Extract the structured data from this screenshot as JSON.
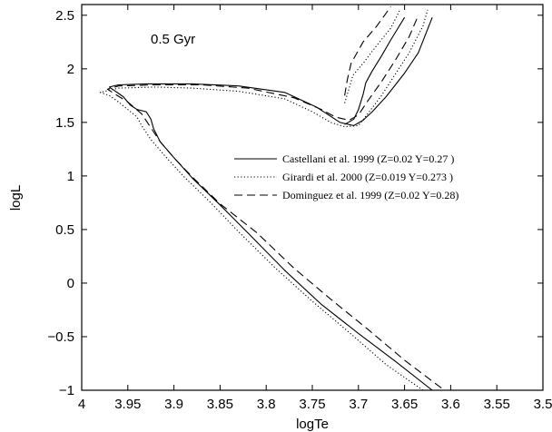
{
  "chart_data": {
    "type": "line",
    "title": "",
    "annotation": "0.5 Gyr",
    "xlabel": "logTe",
    "ylabel": "logL",
    "xlim": [
      4,
      3.5
    ],
    "ylim": [
      -1,
      2.6
    ],
    "x_inverted": true,
    "grid": false,
    "legend_position": "center-right",
    "x_ticks": [
      4,
      3.95,
      3.9,
      3.85,
      3.8,
      3.75,
      3.7,
      3.65,
      3.6,
      3.55,
      3.5
    ],
    "x_tick_labels": [
      "4",
      "3.95",
      "3.9",
      "3.85",
      "3.8",
      "3.75",
      "3.7",
      "3.65",
      "3.6",
      "3.55",
      "3.5"
    ],
    "y_ticks": [
      -1,
      -0.5,
      0,
      0.5,
      1,
      1.5,
      2,
      2.5
    ],
    "y_tick_labels": [
      "−1",
      "−0.5",
      "0",
      "0.5",
      "1",
      "1.5",
      "2",
      "2.5"
    ],
    "series": [
      {
        "name": "Castellani et al. 1999 (Z=0.02 Y=0.27 )",
        "line_style": "solid",
        "color": "#000000",
        "segments": [
          [
            [
              3.62,
              -1.0
            ],
            [
              3.66,
              -0.73
            ],
            [
              3.7,
              -0.47
            ],
            [
              3.74,
              -0.2
            ],
            [
              3.78,
              0.12
            ],
            [
              3.82,
              0.47
            ],
            [
              3.85,
              0.73
            ],
            [
              3.88,
              0.98
            ],
            [
              3.9,
              1.17
            ],
            [
              3.915,
              1.32
            ],
            [
              3.922,
              1.44
            ],
            [
              3.925,
              1.53
            ],
            [
              3.93,
              1.6
            ],
            [
              3.94,
              1.62
            ],
            [
              3.947,
              1.66
            ],
            [
              3.955,
              1.74
            ],
            [
              3.97,
              1.83
            ],
            [
              3.96,
              1.85
            ],
            [
              3.93,
              1.86
            ],
            [
              3.88,
              1.86
            ],
            [
              3.83,
              1.84
            ],
            [
              3.78,
              1.78
            ],
            [
              3.745,
              1.64
            ],
            [
              3.72,
              1.5
            ],
            [
              3.705,
              1.47
            ],
            [
              3.695,
              1.52
            ],
            [
              3.685,
              1.6
            ],
            [
              3.67,
              1.74
            ],
            [
              3.65,
              1.96
            ],
            [
              3.635,
              2.15
            ],
            [
              3.62,
              2.48
            ]
          ],
          [
            [
              3.715,
              1.48
            ],
            [
              3.705,
              1.53
            ],
            [
              3.7,
              1.62
            ],
            [
              3.695,
              1.76
            ],
            [
              3.692,
              1.87
            ],
            [
              3.685,
              1.98
            ],
            [
              3.675,
              2.12
            ],
            [
              3.665,
              2.27
            ],
            [
              3.65,
              2.48
            ]
          ]
        ]
      },
      {
        "name": "Girardi et al. 2000 (Z=0.019 Y=0.273 )",
        "line_style": "dotted",
        "color": "#000000",
        "segments": [
          [
            [
              3.63,
              -1.0
            ],
            [
              3.67,
              -0.76
            ],
            [
              3.71,
              -0.46
            ],
            [
              3.75,
              -0.17
            ],
            [
              3.79,
              0.14
            ],
            [
              3.83,
              0.48
            ],
            [
              3.86,
              0.75
            ],
            [
              3.89,
              1.0
            ],
            [
              3.91,
              1.19
            ],
            [
              3.925,
              1.34
            ],
            [
              3.935,
              1.47
            ],
            [
              3.94,
              1.55
            ],
            [
              3.95,
              1.62
            ],
            [
              3.96,
              1.69
            ],
            [
              3.97,
              1.75
            ],
            [
              3.98,
              1.78
            ],
            [
              3.96,
              1.82
            ],
            [
              3.92,
              1.83
            ],
            [
              3.88,
              1.82
            ],
            [
              3.83,
              1.79
            ],
            [
              3.78,
              1.72
            ],
            [
              3.75,
              1.6
            ],
            [
              3.73,
              1.5
            ],
            [
              3.715,
              1.46
            ],
            [
              3.7,
              1.47
            ],
            [
              3.69,
              1.58
            ],
            [
              3.675,
              1.75
            ],
            [
              3.66,
              1.95
            ],
            [
              3.645,
              2.15
            ],
            [
              3.63,
              2.4
            ],
            [
              3.625,
              2.55
            ]
          ],
          [
            [
              3.715,
              1.68
            ],
            [
              3.71,
              1.82
            ],
            [
              3.706,
              1.94
            ],
            [
              3.695,
              2.05
            ],
            [
              3.68,
              2.22
            ],
            [
              3.665,
              2.38
            ],
            [
              3.655,
              2.55
            ]
          ]
        ]
      },
      {
        "name": "Dominguez et al. 1999 (Z=0.02 Y=0.28)",
        "line_style": "dashed",
        "color": "#000000",
        "segments": [
          [
            [
              3.61,
              -0.98
            ],
            [
              3.65,
              -0.72
            ],
            [
              3.69,
              -0.43
            ],
            [
              3.73,
              -0.15
            ],
            [
              3.77,
              0.14
            ],
            [
              3.81,
              0.47
            ],
            [
              3.85,
              0.74
            ],
            [
              3.88,
              0.99
            ],
            [
              3.9,
              1.17
            ],
            [
              3.915,
              1.32
            ],
            [
              3.925,
              1.45
            ],
            [
              3.935,
              1.58
            ],
            [
              3.95,
              1.69
            ],
            [
              3.965,
              1.77
            ],
            [
              3.972,
              1.81
            ],
            [
              3.96,
              1.84
            ],
            [
              3.92,
              1.85
            ],
            [
              3.87,
              1.85
            ],
            [
              3.82,
              1.82
            ],
            [
              3.77,
              1.73
            ],
            [
              3.74,
              1.62
            ],
            [
              3.725,
              1.55
            ],
            [
              3.71,
              1.52
            ],
            [
              3.7,
              1.57
            ],
            [
              3.69,
              1.7
            ],
            [
              3.675,
              1.88
            ],
            [
              3.66,
              2.08
            ],
            [
              3.645,
              2.3
            ],
            [
              3.635,
              2.5
            ]
          ],
          [
            [
              3.715,
              1.75
            ],
            [
              3.712,
              1.9
            ],
            [
              3.708,
              2.05
            ],
            [
              3.695,
              2.25
            ],
            [
              3.68,
              2.4
            ],
            [
              3.665,
              2.58
            ]
          ]
        ]
      }
    ]
  }
}
